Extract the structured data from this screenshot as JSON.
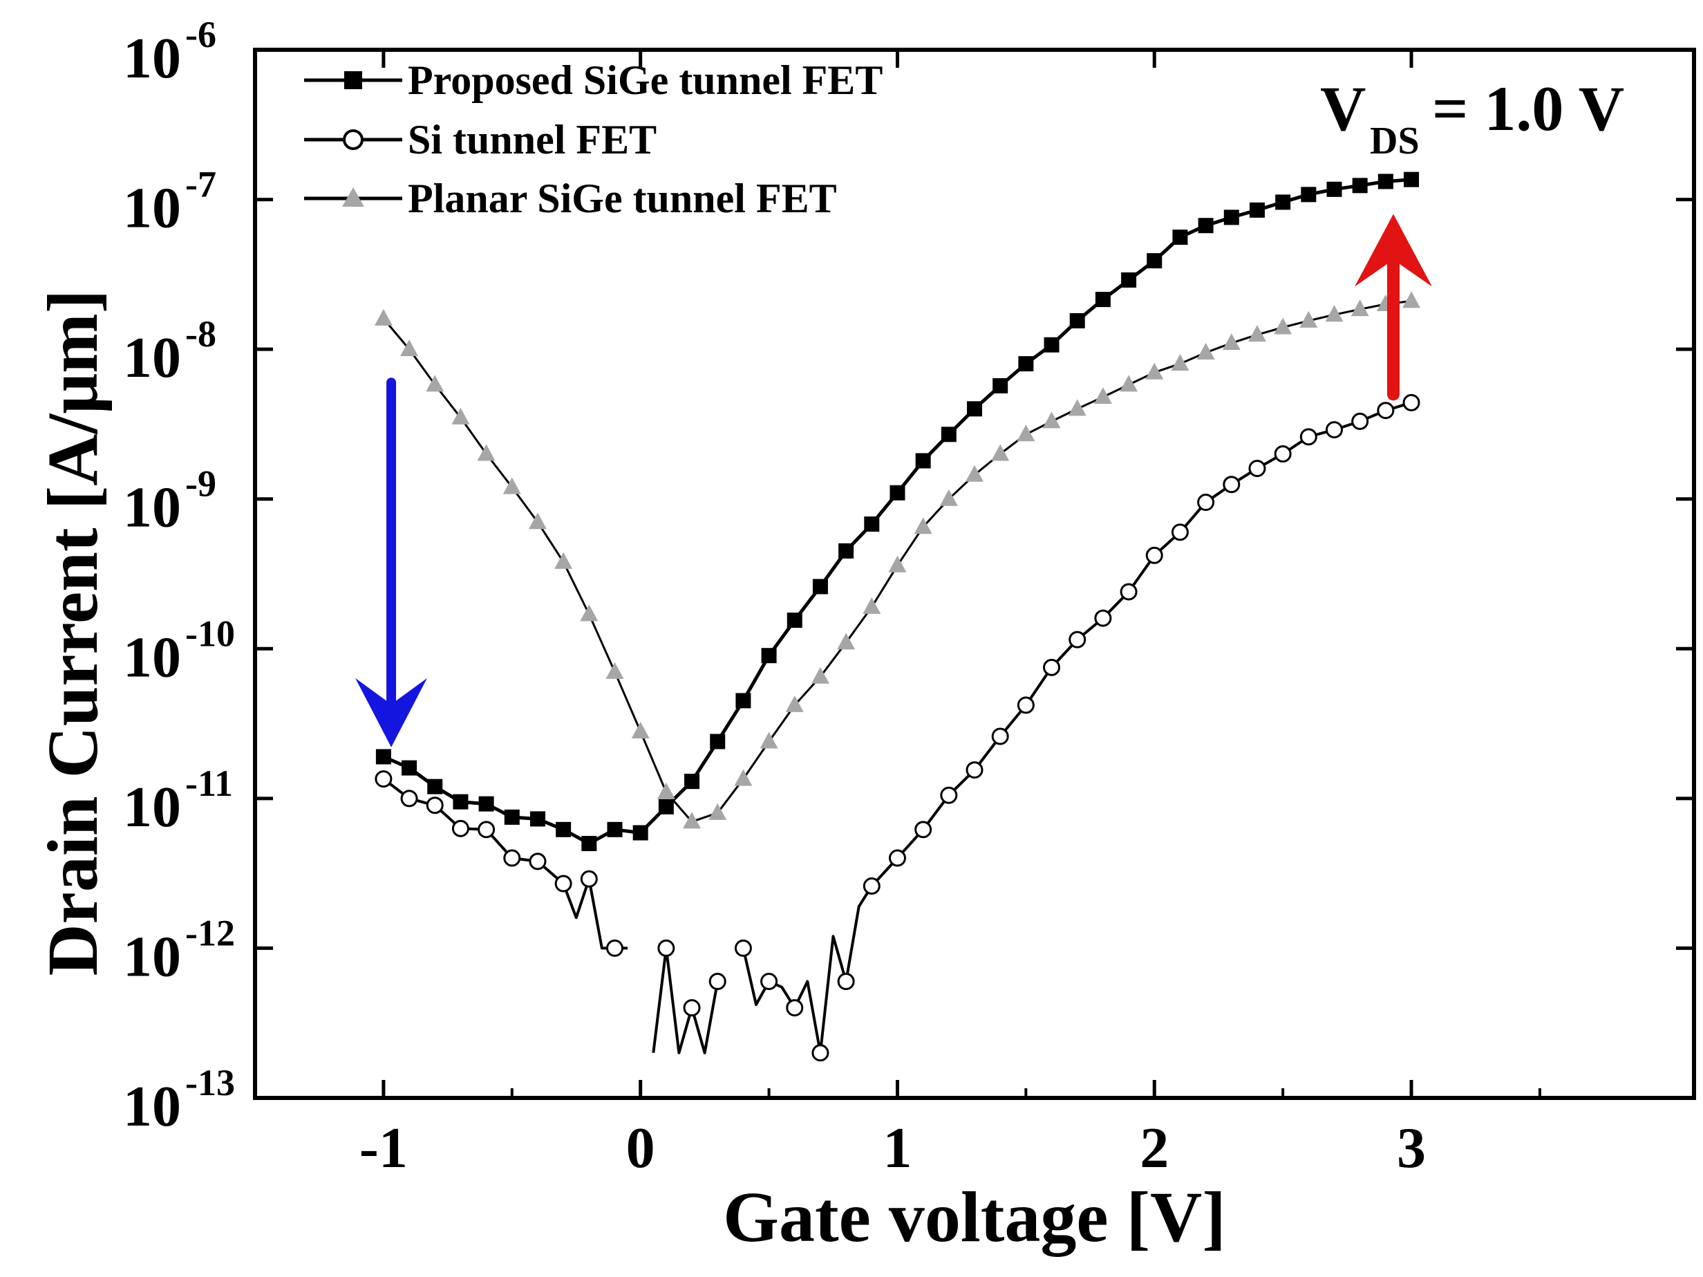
{
  "chart_data": {
    "type": "line",
    "x_scale": "linear",
    "y_scale": "log",
    "xlabel": "Gate voltage [V]",
    "ylabel": "Drain Current [A/μm]",
    "xlim": [
      -1.5,
      4.1
    ],
    "ylim": [
      1e-13,
      1e-06
    ],
    "x_ticks": [
      -1,
      0,
      1,
      2,
      3
    ],
    "x_tick_labels": [
      "-1",
      "0",
      "1",
      "2",
      "3"
    ],
    "y_ticks": [
      1e-13,
      1e-12,
      1e-11,
      1e-10,
      1e-09,
      1e-08,
      1e-07,
      1e-06
    ],
    "y_tick_labels": [
      {
        "base": "10",
        "exp": "-13"
      },
      {
        "base": "10",
        "exp": "-12"
      },
      {
        "base": "10",
        "exp": "-11"
      },
      {
        "base": "10",
        "exp": "-10"
      },
      {
        "base": "10",
        "exp": "-9"
      },
      {
        "base": "10",
        "exp": "-8"
      },
      {
        "base": "10",
        "exp": "-7"
      },
      {
        "base": "10",
        "exp": "-6"
      }
    ],
    "grid": false,
    "legend_position": "top-left",
    "annotation": {
      "v": "V",
      "sub": "DS",
      "rest": " = 1.0 V"
    },
    "arrows": [
      {
        "direction": "down",
        "color": "#1515e0",
        "x": -0.97,
        "from_y": 6e-09,
        "to_y": 2.2e-11
      },
      {
        "direction": "up",
        "color": "#e21313",
        "x": 2.93,
        "from_y": 5e-09,
        "to_y": 8e-08
      }
    ],
    "series": [
      {
        "name": "Proposed SiGe tunnel FET",
        "marker": "square",
        "color": "#000000",
        "x": [
          -1.0,
          -0.9,
          -0.8,
          -0.7,
          -0.6,
          -0.5,
          -0.4,
          -0.3,
          -0.2,
          -0.1,
          0.0,
          0.1,
          0.2,
          0.3,
          0.4,
          0.5,
          0.6,
          0.7,
          0.8,
          0.9,
          1.0,
          1.1,
          1.2,
          1.3,
          1.4,
          1.5,
          1.6,
          1.7,
          1.8,
          1.9,
          2.0,
          2.1,
          2.2,
          2.3,
          2.4,
          2.5,
          2.6,
          2.7,
          2.8,
          2.9,
          3.0
        ],
        "y": [
          1.9e-11,
          1.6e-11,
          1.2e-11,
          9.5e-12,
          9.2e-12,
          7.5e-12,
          7.3e-12,
          6.2e-12,
          5e-12,
          6.2e-12,
          5.9e-12,
          8.8e-12,
          1.3e-11,
          2.4e-11,
          4.5e-11,
          9e-11,
          1.55e-10,
          2.6e-10,
          4.5e-10,
          6.8e-10,
          1.1e-09,
          1.8e-09,
          2.7e-09,
          4e-09,
          5.7e-09,
          8e-09,
          1.07e-08,
          1.55e-08,
          2.15e-08,
          2.9e-08,
          3.9e-08,
          5.6e-08,
          6.7e-08,
          7.6e-08,
          8.5e-08,
          9.6e-08,
          1.08e-07,
          1.17e-07,
          1.24e-07,
          1.32e-07,
          1.36e-07
        ]
      },
      {
        "name": "Si tunnel FET",
        "marker": "circle-open",
        "color": "#000000",
        "segments": [
          {
            "x": [
              -1.0,
              -0.9,
              -0.8,
              -0.7,
              -0.6,
              -0.5,
              -0.4,
              -0.3,
              -0.25,
              -0.2,
              -0.15,
              -0.1,
              -0.05
            ],
            "y": [
              1.35e-11,
              1e-11,
              9e-12,
              6.3e-12,
              6.2e-12,
              4e-12,
              3.8e-12,
              2.7e-12,
              1.6e-12,
              2.9e-12,
              1e-12,
              1e-12,
              1e-12
            ]
          },
          {
            "x": [
              0.05,
              0.1,
              0.15,
              0.2,
              0.25,
              0.3
            ],
            "y": [
              2e-13,
              1e-12,
              2e-13,
              4e-13,
              2e-13,
              6e-13
            ]
          },
          {
            "x": [
              0.4,
              0.45,
              0.5,
              0.55,
              0.6,
              0.65,
              0.7,
              0.75,
              0.8,
              0.85,
              0.9,
              1.0,
              1.1,
              1.2,
              1.3,
              1.4,
              1.5,
              1.6,
              1.7,
              1.8,
              1.9,
              2.0,
              2.1,
              2.2,
              2.3,
              2.4,
              2.5,
              2.6,
              2.7,
              2.8,
              2.9,
              3.0
            ],
            "y": [
              1e-12,
              4.2e-13,
              6e-13,
              5.5e-13,
              4e-13,
              6e-13,
              2e-13,
              1.2e-12,
              6e-13,
              1.9e-12,
              2.6e-12,
              4e-12,
              6.2e-12,
              1.05e-11,
              1.55e-11,
              2.6e-11,
              4.2e-11,
              7.5e-11,
              1.15e-10,
              1.6e-10,
              2.4e-10,
              4.2e-10,
              6e-10,
              9.5e-10,
              1.25e-09,
              1.6e-09,
              2e-09,
              2.6e-09,
              2.9e-09,
              3.3e-09,
              3.9e-09,
              4.4e-09
            ]
          }
        ],
        "markers_x": [
          -1.0,
          -0.9,
          -0.8,
          -0.7,
          -0.6,
          -0.5,
          -0.4,
          -0.3,
          -0.2,
          -0.1,
          0.1,
          0.2,
          0.3,
          0.4,
          0.5,
          0.6,
          0.7,
          0.8,
          0.9,
          1.0,
          1.1,
          1.2,
          1.3,
          1.4,
          1.5,
          1.6,
          1.7,
          1.8,
          1.9,
          2.0,
          2.1,
          2.2,
          2.3,
          2.4,
          2.5,
          2.6,
          2.7,
          2.8,
          2.9,
          3.0
        ],
        "markers_y": [
          1.35e-11,
          1e-11,
          9e-12,
          6.3e-12,
          6.2e-12,
          4e-12,
          3.8e-12,
          2.7e-12,
          2.9e-12,
          1e-12,
          1e-12,
          4e-13,
          6e-13,
          1e-12,
          6e-13,
          4e-13,
          2e-13,
          6e-13,
          2.6e-12,
          4e-12,
          6.2e-12,
          1.05e-11,
          1.55e-11,
          2.6e-11,
          4.2e-11,
          7.5e-11,
          1.15e-10,
          1.6e-10,
          2.4e-10,
          4.2e-10,
          6e-10,
          9.5e-10,
          1.25e-09,
          1.6e-09,
          2e-09,
          2.6e-09,
          2.9e-09,
          3.3e-09,
          3.9e-09,
          4.4e-09
        ]
      },
      {
        "name": "Planar SiGe tunnel FET",
        "marker": "triangle",
        "color": "#a6a6a6",
        "x": [
          -1.0,
          -0.9,
          -0.8,
          -0.7,
          -0.6,
          -0.5,
          -0.4,
          -0.3,
          -0.2,
          -0.1,
          0.0,
          0.1,
          0.2,
          0.3,
          0.4,
          0.5,
          0.6,
          0.7,
          0.8,
          0.9,
          1.0,
          1.1,
          1.2,
          1.3,
          1.4,
          1.5,
          1.6,
          1.7,
          1.8,
          1.9,
          2.0,
          2.1,
          2.2,
          2.3,
          2.4,
          2.5,
          2.6,
          2.7,
          2.8,
          2.9,
          3.0
        ],
        "y": [
          1.6e-08,
          1e-08,
          5.8e-09,
          3.5e-09,
          2e-09,
          1.2e-09,
          7e-10,
          3.8e-10,
          1.7e-10,
          7e-11,
          2.8e-11,
          1.1e-11,
          7e-12,
          8e-12,
          1.35e-11,
          2.4e-11,
          4.2e-11,
          6.5e-11,
          1.1e-10,
          1.9e-10,
          3.6e-10,
          6.5e-10,
          1e-09,
          1.45e-09,
          2e-09,
          2.7e-09,
          3.3e-09,
          4e-09,
          4.8e-09,
          5.8e-09,
          7e-09,
          8e-09,
          9.5e-09,
          1.1e-08,
          1.25e-08,
          1.4e-08,
          1.55e-08,
          1.7e-08,
          1.85e-08,
          2e-08,
          2.1e-08
        ]
      }
    ]
  }
}
